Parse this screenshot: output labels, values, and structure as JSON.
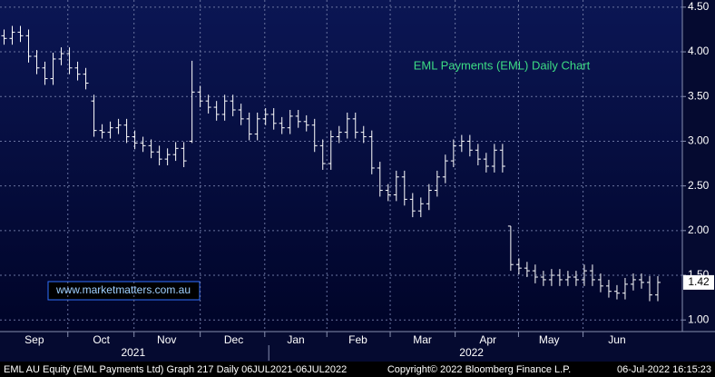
{
  "chart_data": {
    "type": "ohlc",
    "title": "EML Payments (EML) Daily Chart",
    "watermark": "www.marketmatters.com.au",
    "footer_left": "EML AU Equity (EML Payments Ltd) Graph 217  Daily 06JUL2021-06JUL2022",
    "footer_center": "Copyright© 2022 Bloomberg Finance L.P.",
    "footer_right": "06-Jul-2022 16:15:23",
    "color": "#ffffff",
    "title_color": "#3ddc84",
    "grid": true,
    "xlim": [
      -0.5,
      83
    ],
    "xticks": [
      {
        "value": 3.7,
        "label": "Sep"
      },
      {
        "value": 11.9,
        "label": "Oct"
      },
      {
        "value": 19.9,
        "label": "Nov"
      },
      {
        "value": 28.1,
        "label": "Dec"
      },
      {
        "value": 35.7,
        "label": "Jan"
      },
      {
        "value": 43.3,
        "label": "Feb"
      },
      {
        "value": 51.2,
        "label": "Mar"
      },
      {
        "value": 59.2,
        "label": "Apr"
      },
      {
        "value": 66.7,
        "label": "May"
      },
      {
        "value": 75.0,
        "label": "Jun"
      }
    ],
    "year_labels": [
      {
        "value": 15.8,
        "label": "2021"
      },
      {
        "value": 57.2,
        "label": "2022"
      }
    ],
    "ylim": [
      0.87,
      4.58
    ],
    "yticks": [
      {
        "value": 1.0,
        "label": "1.00"
      },
      {
        "value": 1.5,
        "label": "1.50"
      },
      {
        "value": 2.0,
        "label": "2.00"
      },
      {
        "value": 2.5,
        "label": "2.50"
      },
      {
        "value": 3.0,
        "label": "3.00"
      },
      {
        "value": 3.5,
        "label": "3.50"
      },
      {
        "value": 4.0,
        "label": "4.00"
      },
      {
        "value": 4.5,
        "label": "4.50"
      }
    ],
    "open": [
      4.18,
      4.15,
      4.22,
      4.18,
      3.95,
      3.82,
      3.7,
      3.92,
      3.98,
      3.82,
      3.75,
      3.45,
      3.12,
      3.1,
      3.15,
      3.18,
      3.05,
      2.98,
      2.95,
      2.88,
      2.8,
      2.85,
      2.92,
      3.0,
      3.55,
      3.45,
      3.38,
      3.3,
      3.45,
      3.35,
      3.25,
      3.08,
      3.25,
      3.3,
      3.2,
      3.15,
      3.28,
      3.22,
      3.18,
      2.95,
      2.75,
      3.05,
      3.1,
      3.25,
      3.1,
      3.05,
      2.7,
      2.45,
      2.4,
      2.6,
      2.35,
      2.22,
      2.3,
      2.45,
      2.6,
      2.78,
      2.95,
      3.0,
      2.9,
      2.8,
      2.72,
      2.9,
      2.05,
      1.62,
      1.58,
      1.55,
      1.48,
      1.45,
      1.5,
      1.45,
      1.48,
      1.45,
      1.55,
      1.45,
      1.38,
      1.32,
      1.3,
      1.4,
      1.45,
      1.42,
      1.28
    ],
    "high": [
      4.25,
      4.29,
      4.29,
      4.25,
      4.02,
      3.89,
      3.99,
      4.05,
      4.05,
      3.89,
      3.82,
      3.52,
      3.19,
      3.22,
      3.25,
      3.25,
      3.12,
      3.05,
      3.02,
      2.95,
      2.92,
      2.99,
      2.99,
      3.9,
      3.62,
      3.52,
      3.45,
      3.52,
      3.52,
      3.42,
      3.32,
      3.32,
      3.37,
      3.37,
      3.27,
      3.35,
      3.35,
      3.29,
      3.25,
      3.02,
      3.12,
      3.17,
      3.32,
      3.32,
      3.17,
      3.12,
      2.77,
      2.52,
      2.67,
      2.67,
      2.42,
      2.37,
      2.52,
      2.67,
      2.85,
      3.02,
      3.07,
      3.07,
      2.97,
      2.87,
      2.97,
      2.97,
      2.05,
      1.69,
      1.65,
      1.62,
      1.55,
      1.57,
      1.57,
      1.55,
      1.55,
      1.62,
      1.62,
      1.52,
      1.45,
      1.39,
      1.47,
      1.52,
      1.52,
      1.49,
      1.49
    ],
    "low": [
      4.08,
      4.08,
      4.11,
      3.88,
      3.75,
      3.63,
      3.63,
      3.85,
      3.75,
      3.68,
      3.58,
      3.05,
      3.03,
      3.03,
      3.08,
      2.98,
      2.91,
      2.88,
      2.81,
      2.73,
      2.73,
      2.78,
      2.71,
      2.98,
      3.38,
      3.31,
      3.23,
      3.23,
      3.28,
      3.18,
      3.01,
      3.01,
      3.18,
      3.13,
      3.08,
      3.08,
      3.15,
      3.11,
      2.88,
      2.68,
      2.68,
      2.98,
      3.03,
      3.03,
      2.98,
      2.63,
      2.38,
      2.33,
      2.33,
      2.28,
      2.15,
      2.15,
      2.23,
      2.38,
      2.53,
      2.71,
      2.88,
      2.83,
      2.73,
      2.65,
      2.65,
      2.65,
      1.55,
      1.51,
      1.48,
      1.41,
      1.38,
      1.38,
      1.38,
      1.38,
      1.38,
      1.38,
      1.38,
      1.31,
      1.25,
      1.23,
      1.23,
      1.33,
      1.35,
      1.21,
      1.21
    ],
    "close": [
      4.15,
      4.22,
      4.18,
      3.95,
      3.82,
      3.7,
      3.92,
      3.98,
      3.82,
      3.75,
      3.65,
      3.12,
      3.1,
      3.15,
      3.18,
      3.05,
      2.98,
      2.95,
      2.88,
      2.8,
      2.85,
      2.92,
      2.78,
      3.55,
      3.45,
      3.38,
      3.3,
      3.45,
      3.35,
      3.25,
      3.08,
      3.25,
      3.3,
      3.2,
      3.15,
      3.28,
      3.22,
      3.18,
      2.95,
      2.75,
      3.05,
      3.1,
      3.25,
      3.1,
      3.05,
      2.7,
      2.45,
      2.4,
      2.6,
      2.35,
      2.22,
      2.3,
      2.45,
      2.6,
      2.78,
      2.95,
      3.0,
      2.9,
      2.8,
      2.72,
      2.9,
      2.72,
      1.62,
      1.58,
      1.55,
      1.48,
      1.45,
      1.5,
      1.45,
      1.48,
      1.45,
      1.55,
      1.45,
      1.38,
      1.32,
      1.3,
      1.4,
      1.45,
      1.42,
      1.28,
      1.42
    ]
  }
}
